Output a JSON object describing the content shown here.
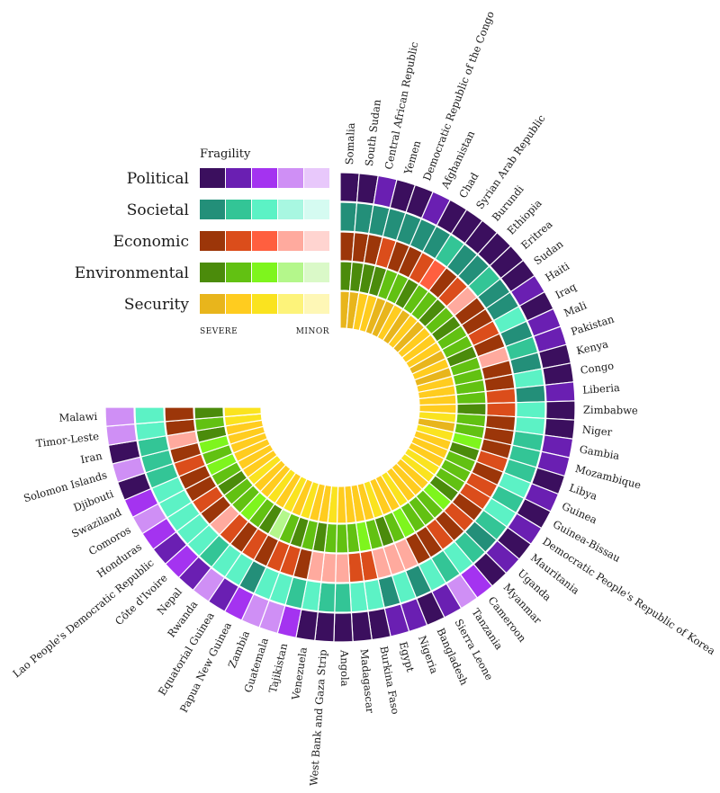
{
  "chart_data": {
    "type": "radial-heatmap",
    "legend": {
      "title": "Fragility",
      "dimensions": [
        "Political",
        "Societal",
        "Economic",
        "Environmental",
        "Security"
      ],
      "scale_left": "SEVERE",
      "scale_right": "MINOR",
      "levels": 5
    },
    "colors": {
      "Political": [
        "#3b0f5e",
        "#6a1fb2",
        "#a433f0",
        "#cf8ff5",
        "#e8c8fb"
      ],
      "Societal": [
        "#238f79",
        "#33c596",
        "#5cf2c5",
        "#a8f7e1",
        "#d5fbf1"
      ],
      "Economic": [
        "#9c3609",
        "#db4d1b",
        "#ff5f3f",
        "#ffaa9e",
        "#ffd4d0"
      ],
      "Environmental": [
        "#4b8b0b",
        "#62c112",
        "#7ef51d",
        "#b4f78b",
        "#daf9c8"
      ],
      "Security": [
        "#e8b51c",
        "#ffcc1f",
        "#fae31f",
        "#fdf37a",
        "#fef7b6"
      ]
    },
    "countries": [
      {
        "name": "Somalia",
        "political": 1,
        "societal": 1,
        "economic": 1,
        "environmental": 1,
        "security": 1
      },
      {
        "name": "South Sudan",
        "political": 1,
        "societal": 1,
        "economic": 1,
        "environmental": 1,
        "security": 1
      },
      {
        "name": "Central African Republic",
        "political": 2,
        "societal": 1,
        "economic": 1,
        "environmental": 1,
        "security": 2
      },
      {
        "name": "Yemen",
        "political": 1,
        "societal": 1,
        "economic": 2,
        "environmental": 1,
        "security": 2
      },
      {
        "name": "Democratic Republic of the Congo",
        "political": 1,
        "societal": 1,
        "economic": 1,
        "environmental": 2,
        "security": 1
      },
      {
        "name": "Afghanistan",
        "political": 2,
        "societal": 1,
        "economic": 1,
        "environmental": 2,
        "security": 1
      },
      {
        "name": "Chad",
        "political": 1,
        "societal": 1,
        "economic": 2,
        "environmental": 1,
        "security": 2
      },
      {
        "name": "Syrian Arab Republic",
        "political": 1,
        "societal": 2,
        "economic": 3,
        "environmental": 2,
        "security": 1
      },
      {
        "name": "Burundi",
        "political": 1,
        "societal": 1,
        "economic": 1,
        "environmental": 2,
        "security": 2
      },
      {
        "name": "Ethiopia",
        "political": 1,
        "societal": 1,
        "economic": 2,
        "environmental": 1,
        "security": 1
      },
      {
        "name": "Eritrea",
        "political": 1,
        "societal": 2,
        "economic": 4,
        "environmental": 2,
        "security": 2
      },
      {
        "name": "Sudan",
        "political": 1,
        "societal": 1,
        "economic": 1,
        "environmental": 1,
        "security": 2
      },
      {
        "name": "Haiti",
        "political": 2,
        "societal": 1,
        "economic": 1,
        "environmental": 2,
        "security": 2
      },
      {
        "name": "Iraq",
        "political": 1,
        "societal": 3,
        "economic": 2,
        "environmental": 2,
        "security": 1
      },
      {
        "name": "Mali",
        "political": 2,
        "societal": 1,
        "economic": 1,
        "environmental": 1,
        "security": 2
      },
      {
        "name": "Pakistan",
        "political": 2,
        "societal": 2,
        "economic": 4,
        "environmental": 2,
        "security": 1
      },
      {
        "name": "Kenya",
        "political": 1,
        "societal": 1,
        "economic": 1,
        "environmental": 2,
        "security": 2
      },
      {
        "name": "Congo",
        "political": 1,
        "societal": 3,
        "economic": 1,
        "environmental": 2,
        "security": 2
      },
      {
        "name": "Liberia",
        "political": 2,
        "societal": 1,
        "economic": 2,
        "environmental": 2,
        "security": 2
      },
      {
        "name": "Zimbabwe",
        "political": 1,
        "societal": 3,
        "economic": 2,
        "environmental": 1,
        "security": 2
      },
      {
        "name": "Niger",
        "political": 1,
        "societal": 3,
        "economic": 1,
        "environmental": 2,
        "security": 3
      },
      {
        "name": "Gambia",
        "political": 2,
        "societal": 2,
        "economic": 1,
        "environmental": 2,
        "security": 1
      },
      {
        "name": "Mozambique",
        "political": 2,
        "societal": 2,
        "economic": 1,
        "environmental": 3,
        "security": 3
      },
      {
        "name": "Libya",
        "political": 1,
        "societal": 2,
        "economic": 2,
        "environmental": 1,
        "security": 2
      },
      {
        "name": "Guinea",
        "political": 2,
        "societal": 3,
        "economic": 1,
        "environmental": 2,
        "security": 2
      },
      {
        "name": "Guinea-Bissau",
        "political": 1,
        "societal": 2,
        "economic": 2,
        "environmental": 2,
        "security": 2
      },
      {
        "name": "Democratic People's Republic of Korea",
        "political": 2,
        "societal": 3,
        "economic": 2,
        "environmental": 2,
        "security": 3
      },
      {
        "name": "Mauritania",
        "political": 1,
        "societal": 2,
        "economic": 1,
        "environmental": 1,
        "security": 3
      },
      {
        "name": "Uganda",
        "political": 2,
        "societal": 1,
        "economic": 2,
        "environmental": 3,
        "security": 2
      },
      {
        "name": "Myanmar",
        "political": 1,
        "societal": 2,
        "economic": 1,
        "environmental": 2,
        "security": 2
      },
      {
        "name": "Cameroon",
        "political": 3,
        "societal": 3,
        "economic": 2,
        "environmental": 2,
        "security": 2
      },
      {
        "name": "Tanzania",
        "political": 4,
        "societal": 2,
        "economic": 1,
        "environmental": 2,
        "security": 3
      },
      {
        "name": "Sierra Leone",
        "political": 2,
        "societal": 3,
        "economic": 1,
        "environmental": 3,
        "security": 2
      },
      {
        "name": "Bangladesh",
        "political": 1,
        "societal": 1,
        "economic": 4,
        "environmental": 2,
        "security": 2
      },
      {
        "name": "Nigeria",
        "political": 2,
        "societal": 3,
        "economic": 4,
        "environmental": 1,
        "security": 3
      },
      {
        "name": "Egypt",
        "political": 2,
        "societal": 1,
        "economic": 4,
        "environmental": 2,
        "security": 2
      },
      {
        "name": "Burkina Faso",
        "political": 1,
        "societal": 3,
        "economic": 2,
        "environmental": 3,
        "security": 2
      },
      {
        "name": "Madagascar",
        "political": 1,
        "societal": 3,
        "economic": 2,
        "environmental": 2,
        "security": 2
      },
      {
        "name": "Angola",
        "political": 1,
        "societal": 2,
        "economic": 4,
        "environmental": 2,
        "security": 2
      },
      {
        "name": "West Bank and Gaza Strip",
        "political": 1,
        "societal": 2,
        "economic": 4,
        "environmental": 2,
        "security": 3
      },
      {
        "name": "Venezuela",
        "political": 1,
        "societal": 3,
        "economic": 4,
        "environmental": 1,
        "security": 2
      },
      {
        "name": "Tajikistan",
        "political": 3,
        "societal": 2,
        "economic": 1,
        "environmental": 2,
        "security": 2
      },
      {
        "name": "Guatemala",
        "political": 4,
        "societal": 3,
        "economic": 2,
        "environmental": 1,
        "security": 3
      },
      {
        "name": "Zambia",
        "political": 4,
        "societal": 3,
        "economic": 2,
        "environmental": 2,
        "security": 2
      },
      {
        "name": "Papua New Guinea",
        "political": 3,
        "societal": 1,
        "economic": 1,
        "environmental": 4,
        "security": 3
      },
      {
        "name": "Equatorial Guinea",
        "political": 2,
        "societal": 3,
        "economic": 2,
        "environmental": 1,
        "security": 2
      },
      {
        "name": "Rwanda",
        "political": 4,
        "societal": 3,
        "economic": 1,
        "environmental": 2,
        "security": 3
      },
      {
        "name": "Nepal",
        "political": 2,
        "societal": 2,
        "economic": 2,
        "environmental": 3,
        "security": 2
      },
      {
        "name": "Côte d'Ivoire",
        "political": 3,
        "societal": 3,
        "economic": 4,
        "environmental": 2,
        "security": 2
      },
      {
        "name": "Lao People's Democratic Republic",
        "political": 2,
        "societal": 3,
        "economic": 1,
        "environmental": 2,
        "security": 3
      },
      {
        "name": "Honduras",
        "political": 3,
        "societal": 3,
        "economic": 2,
        "environmental": 1,
        "security": 2
      },
      {
        "name": "Comoros",
        "political": 4,
        "societal": 3,
        "economic": 1,
        "environmental": 2,
        "security": 2
      },
      {
        "name": "Swaziland",
        "political": 3,
        "societal": 3,
        "economic": 1,
        "environmental": 3,
        "security": 2
      },
      {
        "name": "Djibouti",
        "political": 1,
        "societal": 2,
        "economic": 2,
        "environmental": 2,
        "security": 2
      },
      {
        "name": "Solomon Islands",
        "political": 4,
        "societal": 2,
        "economic": 1,
        "environmental": 3,
        "security": 2
      },
      {
        "name": "Iran",
        "political": 1,
        "societal": 2,
        "economic": 4,
        "environmental": 1,
        "security": 2
      },
      {
        "name": "Timor-Leste",
        "political": 4,
        "societal": 3,
        "economic": 1,
        "environmental": 2,
        "security": 3
      },
      {
        "name": "Malawi",
        "political": 4,
        "societal": 3,
        "economic": 1,
        "environmental": 1,
        "security": 3
      }
    ]
  }
}
